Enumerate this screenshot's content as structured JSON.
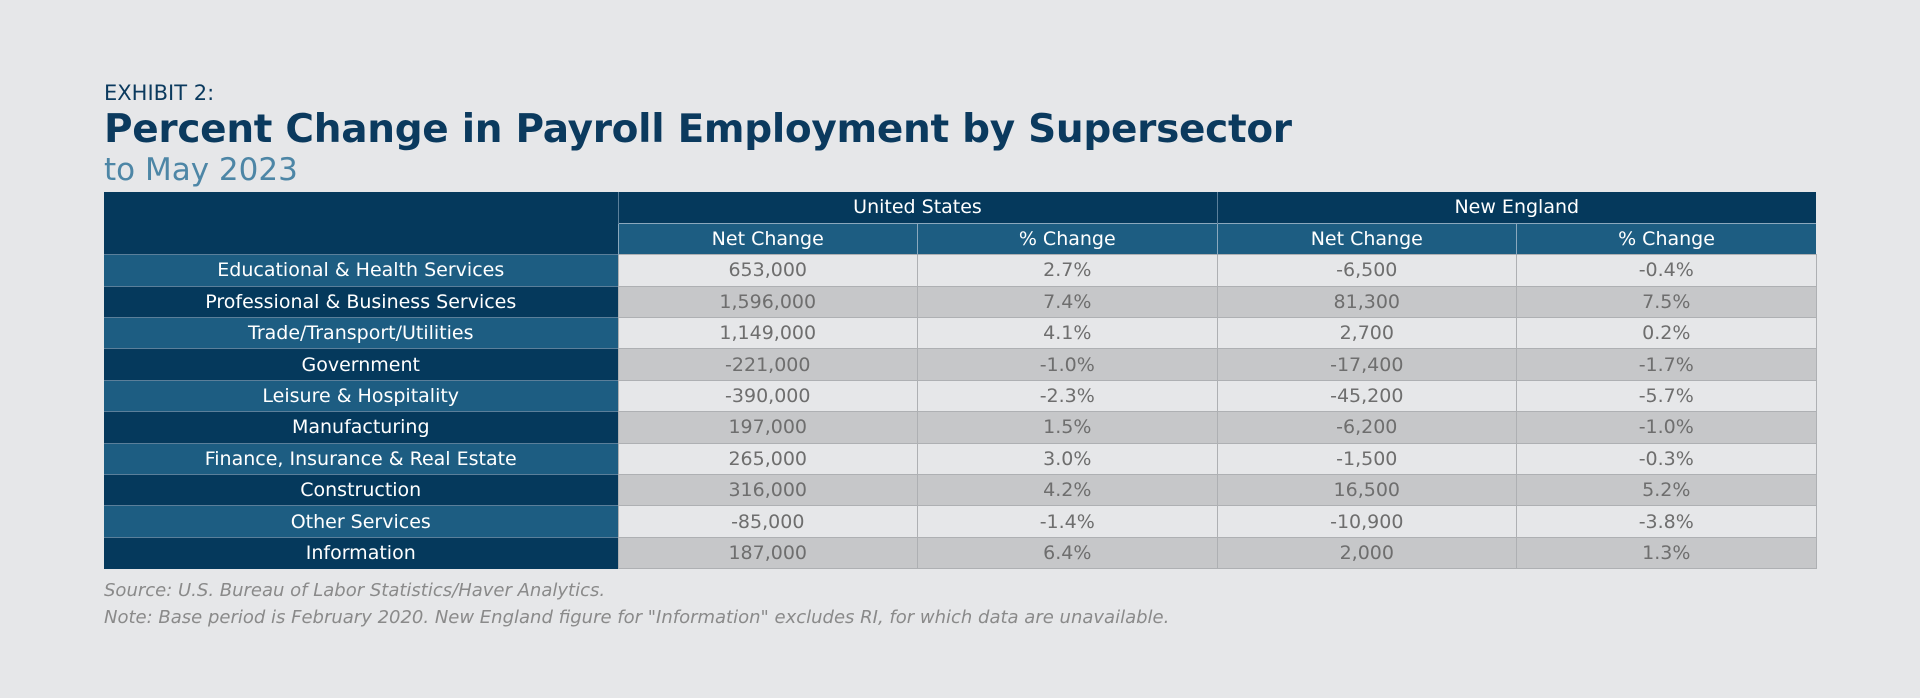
{
  "header": {
    "exhibit": "EXHIBIT 2:",
    "title": "Percent Change in Payroll Employment by Supersector",
    "subtitle": "to May 2023"
  },
  "colors": {
    "background": "#e6e7e9",
    "navy": "#05395c",
    "blue": "#1d5d82",
    "subtitle": "#4d86a6",
    "row_light": "#e6e7e9",
    "row_dark": "#c6c7c9"
  },
  "chart_data": {
    "type": "table",
    "groups": [
      "United States",
      "New England"
    ],
    "columns": [
      "Net Change",
      "% Change",
      "Net Change",
      "% Change"
    ],
    "rows": [
      {
        "sector": "Educational & Health Services",
        "us_net": "653,000",
        "us_pct": "2.7%",
        "ne_net": "-6,500",
        "ne_pct": "-0.4%"
      },
      {
        "sector": "Professional & Business Services",
        "us_net": "1,596,000",
        "us_pct": "7.4%",
        "ne_net": "81,300",
        "ne_pct": "7.5%"
      },
      {
        "sector": "Trade/Transport/Utilities",
        "us_net": "1,149,000",
        "us_pct": "4.1%",
        "ne_net": "2,700",
        "ne_pct": "0.2%"
      },
      {
        "sector": "Government",
        "us_net": "-221,000",
        "us_pct": "-1.0%",
        "ne_net": "-17,400",
        "ne_pct": "-1.7%"
      },
      {
        "sector": "Leisure & Hospitality",
        "us_net": "-390,000",
        "us_pct": "-2.3%",
        "ne_net": "-45,200",
        "ne_pct": "-5.7%"
      },
      {
        "sector": "Manufacturing",
        "us_net": "197,000",
        "us_pct": "1.5%",
        "ne_net": "-6,200",
        "ne_pct": "-1.0%"
      },
      {
        "sector": "Finance, Insurance & Real Estate",
        "us_net": "265,000",
        "us_pct": "3.0%",
        "ne_net": "-1,500",
        "ne_pct": "-0.3%"
      },
      {
        "sector": "Construction",
        "us_net": "316,000",
        "us_pct": "4.2%",
        "ne_net": "16,500",
        "ne_pct": "5.2%"
      },
      {
        "sector": "Other Services",
        "us_net": "-85,000",
        "us_pct": "-1.4%",
        "ne_net": "-10,900",
        "ne_pct": "-3.8%"
      },
      {
        "sector": "Information",
        "us_net": "187,000",
        "us_pct": "6.4%",
        "ne_net": "2,000",
        "ne_pct": "1.3%"
      }
    ]
  },
  "footer": {
    "source": "Source: U.S. Bureau of Labor Statistics/Haver Analytics.",
    "note": "Note: Base period is February 2020. New England figure for \"Information\" excludes RI, for which data are unavailable."
  }
}
